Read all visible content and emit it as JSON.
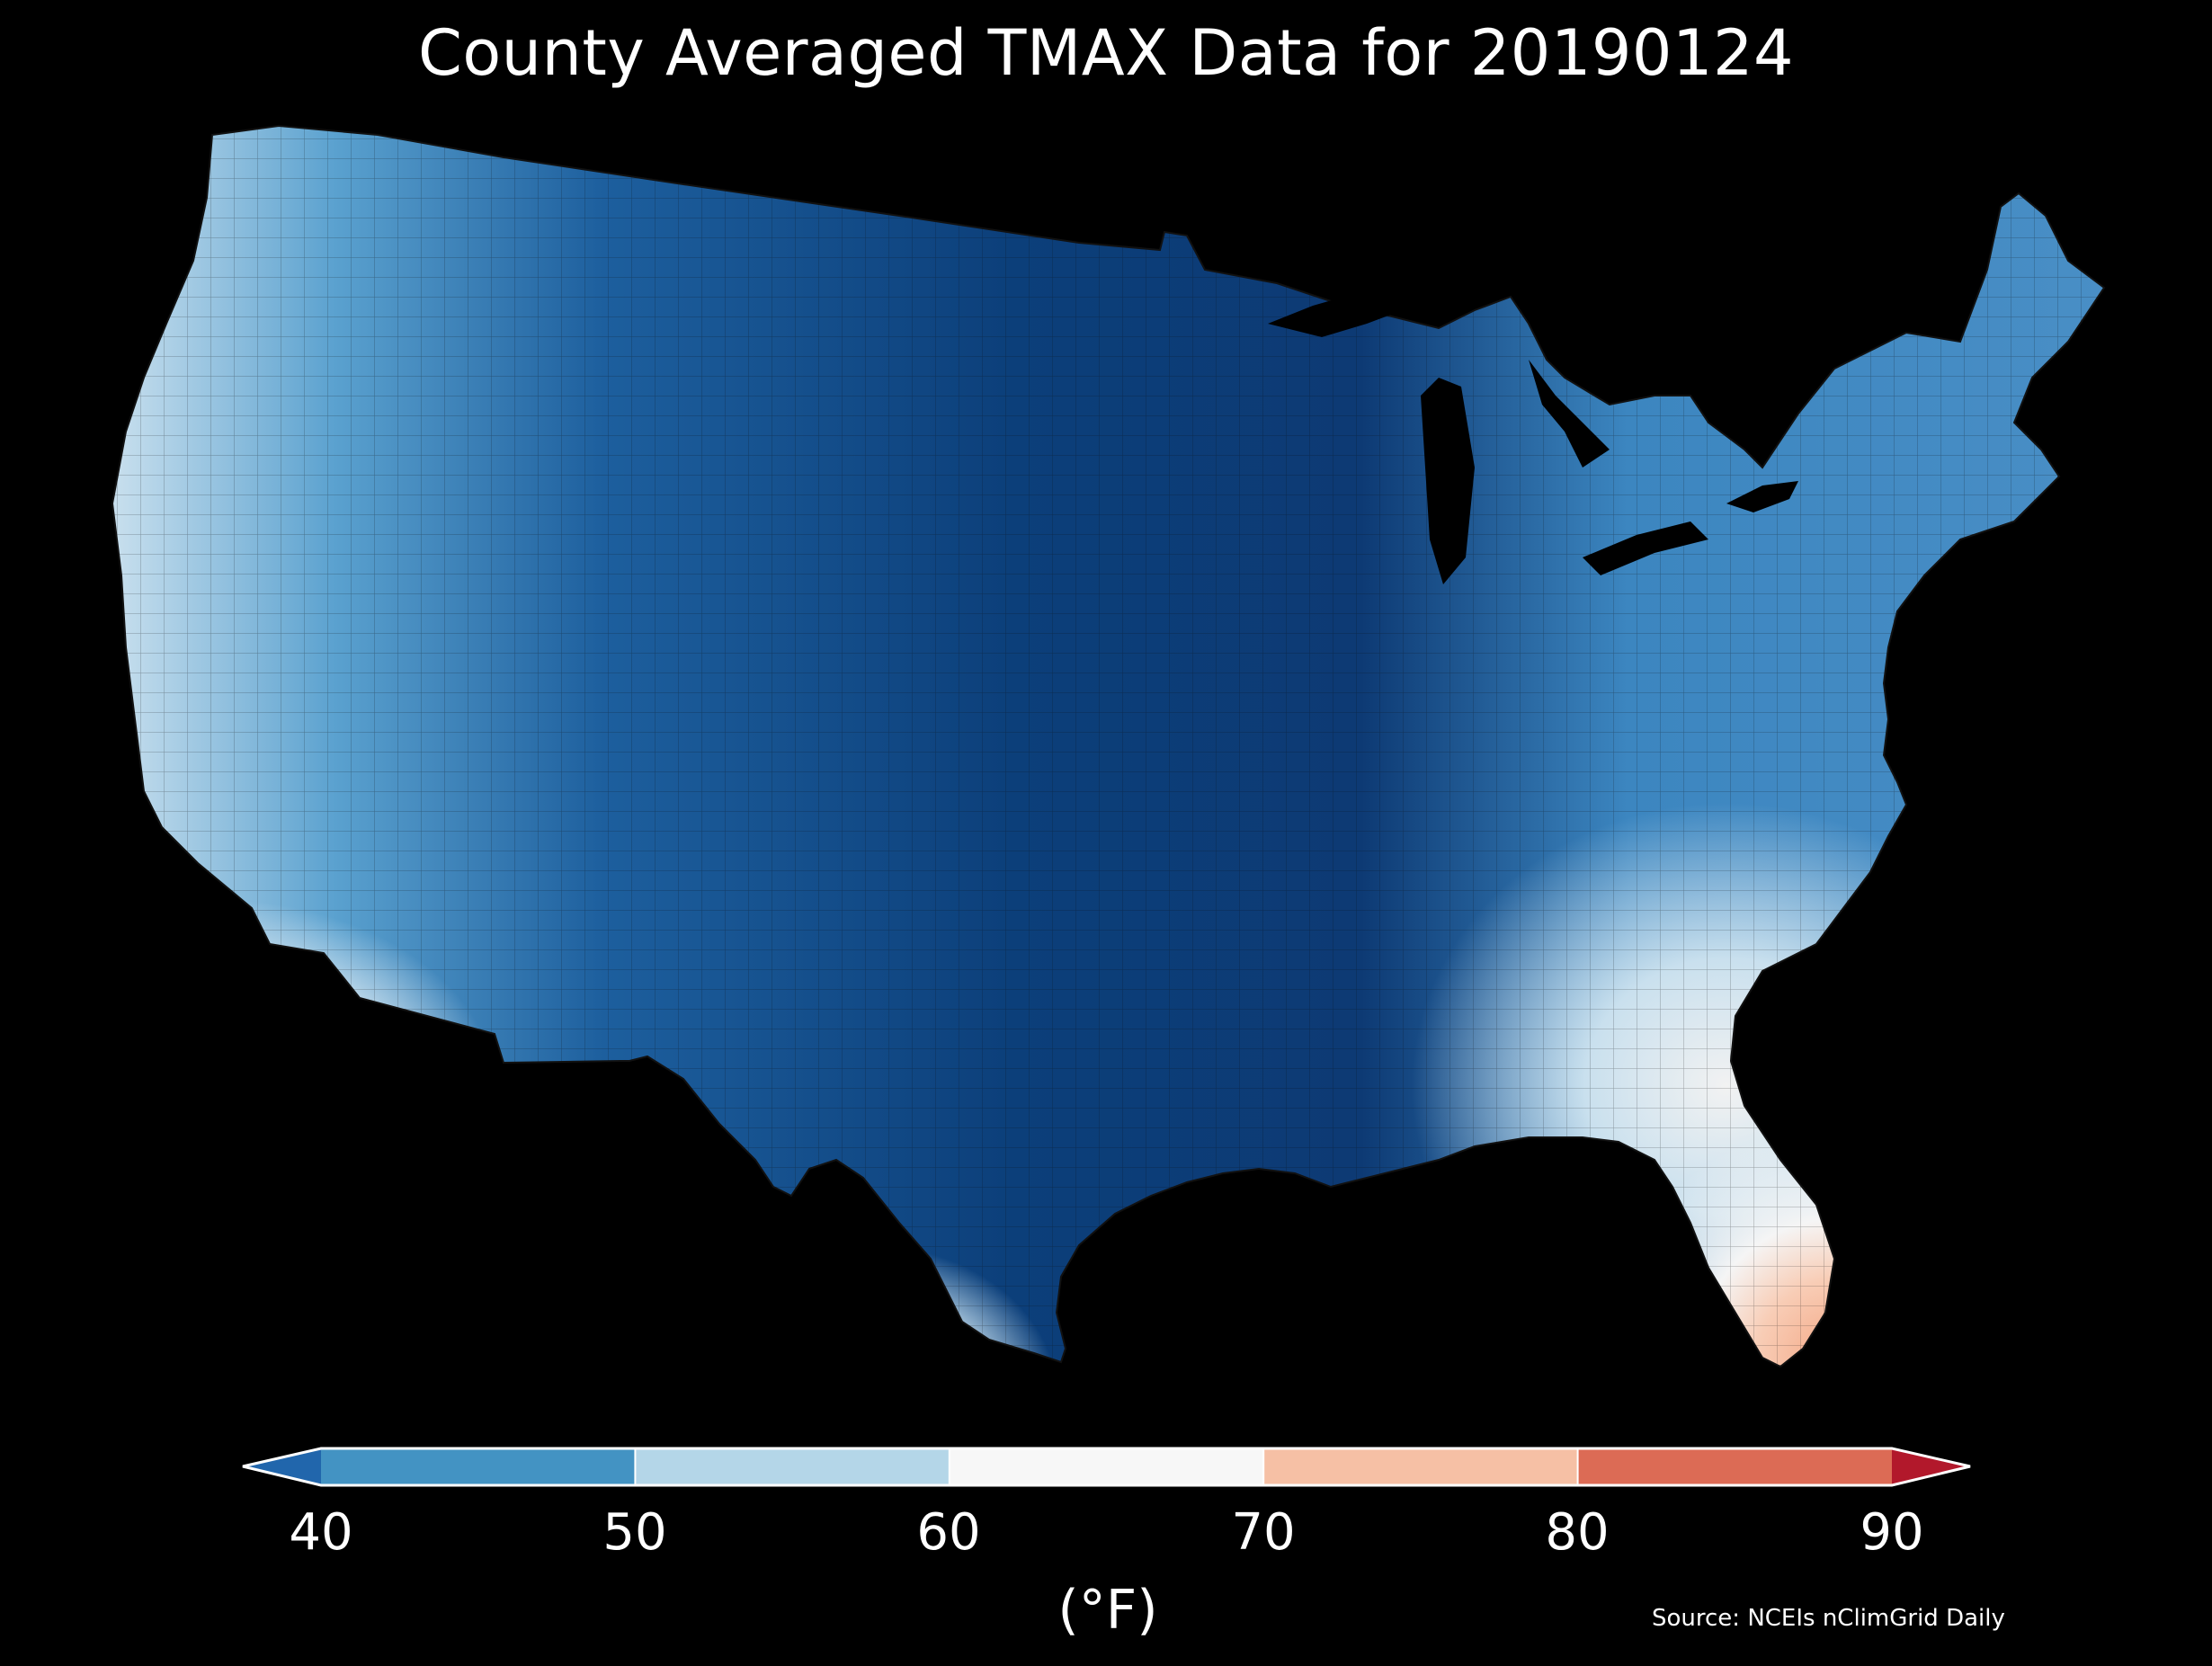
{
  "title": "County Averaged TMAX Data for 20190124",
  "source": "Source: NCEIs nClimGrid Daily",
  "colorbar": {
    "unit_label": "(°F)",
    "ticks": [
      "40",
      "50",
      "60",
      "70",
      "80",
      "90"
    ],
    "bins": [
      {
        "range": "<40",
        "color": "#2166ac"
      },
      {
        "range": "40-50",
        "color": "#4393c3"
      },
      {
        "range": "50-60",
        "color": "#b4d6e8"
      },
      {
        "range": "60-70",
        "color": "#f7f7f7"
      },
      {
        "range": "70-80",
        "color": "#f6c0a5"
      },
      {
        "range": "80-90",
        "color": "#dc6b55"
      },
      {
        "range": ">90",
        "color": "#b2182b"
      }
    ]
  },
  "map": {
    "region": "Contiguous United States",
    "variable": "TMAX",
    "date": "20190124",
    "background": "#000000"
  }
}
